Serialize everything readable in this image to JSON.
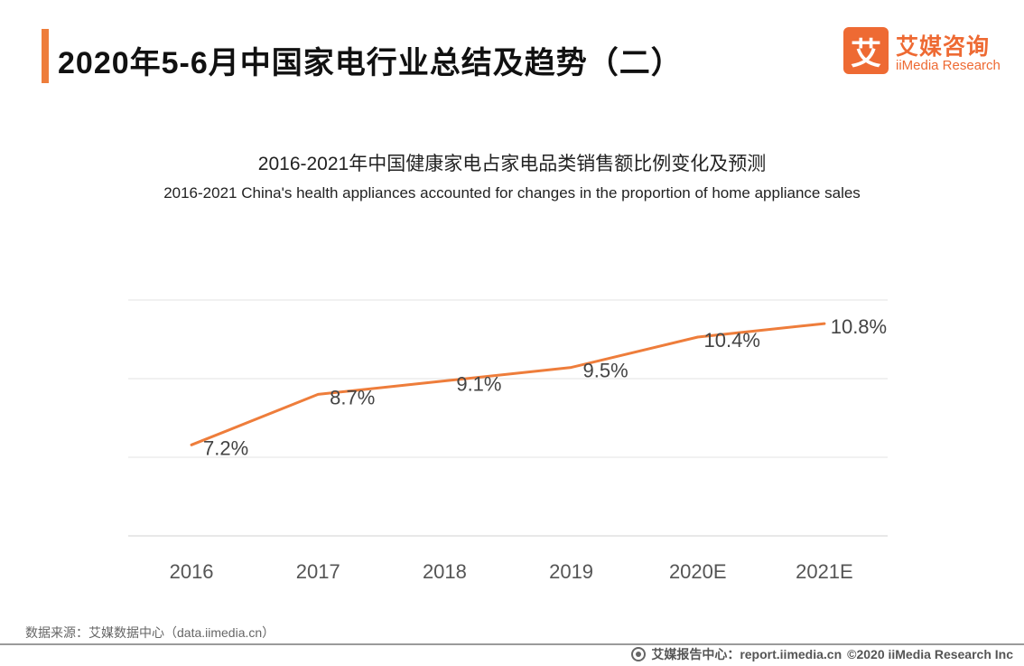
{
  "header": {
    "title": "2020年5-6月中国家电行业总结及趋势（二）",
    "accent_color": "#ee7d3b"
  },
  "logo": {
    "mark": "艾",
    "cn": "艾媒咨询",
    "en": "iiMedia Research",
    "color": "#ee6a33"
  },
  "chart_data": {
    "type": "line",
    "title": "2016-2021年中国健康家电占家电品类销售额比例变化及预测",
    "subtitle": "2016-2021 China's health appliances accounted for changes in the proportion of home appliance sales",
    "categories": [
      "2016",
      "2017",
      "2018",
      "2019",
      "2020E",
      "2021E"
    ],
    "series": [
      {
        "values": [
          7.2,
          8.7,
          9.1,
          9.5,
          10.4,
          10.8
        ],
        "color": "#ee7d3b"
      }
    ],
    "data_labels": [
      "7.2%",
      "8.7%",
      "9.1%",
      "9.5%",
      "10.4%",
      "10.8%"
    ],
    "ylim": [
      4.5,
      11.5
    ],
    "grid": true,
    "legend": "none"
  },
  "footer": {
    "source": "数据来源：艾媒数据中心（data.iimedia.cn）",
    "report": "艾媒报告中心：report.iimedia.cn",
    "copyright": "©2020  iiMedia Research  Inc"
  }
}
